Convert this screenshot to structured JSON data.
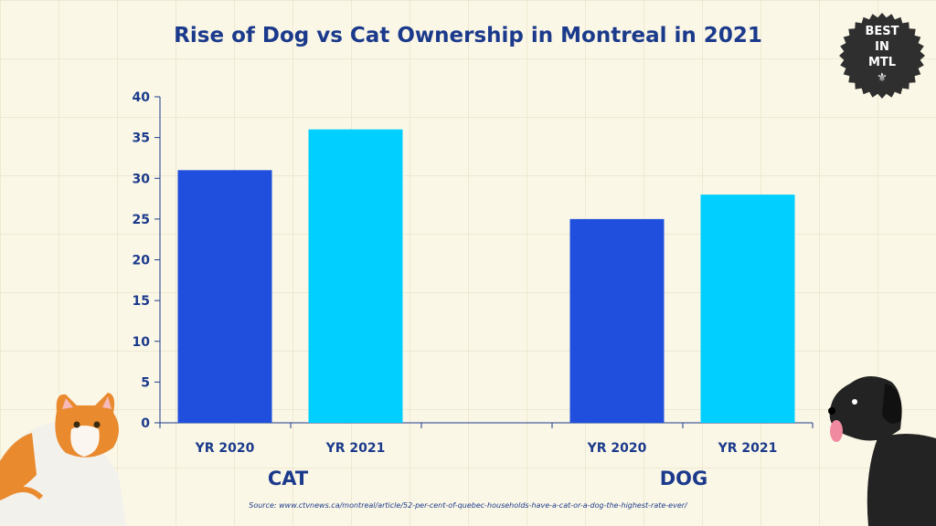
{
  "title": "Rise of Dog vs Cat Ownership in Montreal in 2021",
  "badge": {
    "line1": "BEST",
    "line2": "IN",
    "line3": "MTL",
    "symbol": "⚜"
  },
  "source": "Source: www.ctvnews.ca/montreal/article/52-per-cent-of-quebec-households-have-a-cat-or-a-dog-the-highest-rate-ever/",
  "colors": {
    "yr2020": "#1f4fdc",
    "yr2021": "#00cfff",
    "axis": "#1b3a8c"
  },
  "chart_data": {
    "type": "bar",
    "title": "Rise of Dog vs Cat Ownership in Montreal in 2021",
    "xlabel": "",
    "ylabel": "",
    "ylim": [
      0,
      40
    ],
    "yticks": [
      0,
      5,
      10,
      15,
      20,
      25,
      30,
      35,
      40
    ],
    "groups": [
      {
        "name": "CAT",
        "bars": [
          {
            "label": "YR 2020",
            "value": 31
          },
          {
            "label": "YR 2021",
            "value": 36
          }
        ]
      },
      {
        "name": "DOG",
        "bars": [
          {
            "label": "YR 2020",
            "value": 25
          },
          {
            "label": "YR 2021",
            "value": 28
          }
        ]
      }
    ]
  }
}
